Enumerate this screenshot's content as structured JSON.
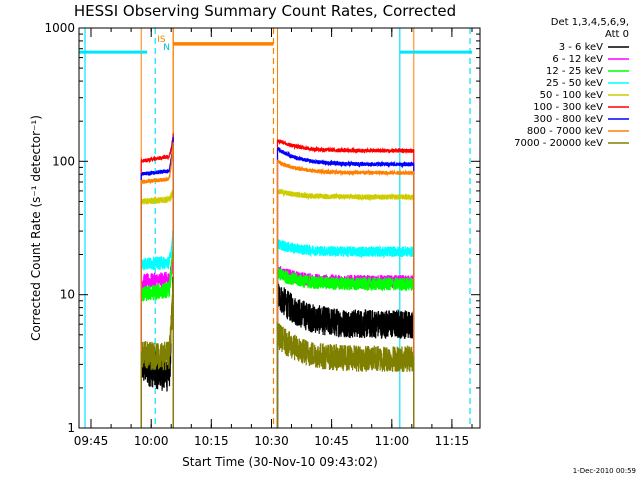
{
  "chart_data": {
    "type": "line",
    "title": "HESSI Observing Summary Count Rates, Corrected",
    "xlabel": "Start Time (30-Nov-10 09:43:02)",
    "ylabel": "Corrected Count Rate (s⁻¹ detector⁻¹)",
    "y_scale": "log",
    "ylim": [
      1,
      1000
    ],
    "xlim": [
      "09:42",
      "11:22"
    ],
    "x_ticks": [
      "09:45",
      "10:00",
      "10:15",
      "10:30",
      "10:45",
      "11:00",
      "11:15"
    ],
    "y_ticks": [
      "1",
      "10",
      "100",
      "1000"
    ],
    "grid": false,
    "legend_header": [
      "Det 1,3,4,5,6,9,",
      "Att 0"
    ],
    "timestamp": "1-Dec-2010 00:59",
    "flag_labels": {
      "saa": "S",
      "eclipse": "N",
      "intervals": "IS"
    },
    "segments": [
      {
        "start": "09:57.5",
        "end": "10:05.5"
      },
      {
        "start": "10:31.5",
        "end": "11:05.5"
      }
    ],
    "events": {
      "eclipse_bars": [
        {
          "start": "09:42",
          "end": "09:59",
          "level": 660
        },
        {
          "start": "11:02",
          "end": "11:20",
          "level": 660
        }
      ],
      "saa_bar": {
        "start": "10:05.5",
        "end": "10:30.5",
        "level": 760
      },
      "cyan_solid_lines": [
        "09:43.5",
        "11:02"
      ],
      "cyan_dashed_lines": [
        "10:01",
        "11:19.5"
      ],
      "orange_solid_lines": [
        "10:05.5"
      ],
      "orange_dashed_lines": [
        "10:30.5"
      ]
    },
    "series": [
      {
        "name": "3 - 6 keV",
        "color": "#000000",
        "seg1": {
          "start": 3.0,
          "end": 2.5,
          "noise": 0.3,
          "spike": 14
        },
        "seg2": {
          "start": 10.0,
          "end": 6.0,
          "noise": 0.22
        }
      },
      {
        "name": "6 - 12 keV",
        "color": "#ff00ff",
        "seg1": {
          "start": 12.5,
          "end": 13.0,
          "noise": 0.12,
          "spike": 20
        },
        "seg2": {
          "start": 15.0,
          "end": 12.5,
          "noise": 0.1
        }
      },
      {
        "name": "12 - 25 keV",
        "color": "#00ff00",
        "seg1": {
          "start": 10.0,
          "end": 11.0,
          "noise": 0.12,
          "spike": 25
        },
        "seg2": {
          "start": 14.5,
          "end": 12.0,
          "noise": 0.1
        }
      },
      {
        "name": "25 - 50 keV",
        "color": "#00ffff",
        "seg1": {
          "start": 17.0,
          "end": 17.5,
          "noise": 0.1,
          "spike": 30
        },
        "seg2": {
          "start": 24.0,
          "end": 21.0,
          "noise": 0.08
        }
      },
      {
        "name": "50 - 100 keV",
        "color": "#cccc00",
        "seg1": {
          "start": 50.0,
          "end": 52.0,
          "noise": 0.05,
          "spike": 60
        },
        "seg2": {
          "start": 60.0,
          "end": 54.0,
          "noise": 0.04
        }
      },
      {
        "name": "100 - 300 keV",
        "color": "#ff0000",
        "seg1": {
          "start": 100.0,
          "end": 110.0,
          "noise": 0.03,
          "spike": 160
        },
        "seg2": {
          "start": 145.0,
          "end": 120.0,
          "noise": 0.03
        }
      },
      {
        "name": "300 - 800 keV",
        "color": "#0000ff",
        "seg1": {
          "start": 80.0,
          "end": 85.0,
          "noise": 0.03,
          "spike": 150
        },
        "seg2": {
          "start": 125.0,
          "end": 95.0,
          "noise": 0.03
        }
      },
      {
        "name": "800 - 7000 keV",
        "color": "#ff8000",
        "seg1": {
          "start": 70.0,
          "end": 74.0,
          "noise": 0.03,
          "spike": 140
        },
        "seg2": {
          "start": 100.0,
          "end": 82.0,
          "noise": 0.03
        }
      },
      {
        "name": "7000 - 20000 keV",
        "color": "#808000",
        "seg1": {
          "start": 3.5,
          "end": 3.5,
          "noise": 0.22,
          "spike": 12
        },
        "seg2": {
          "start": 5.0,
          "end": 3.3,
          "noise": 0.2
        }
      }
    ]
  }
}
